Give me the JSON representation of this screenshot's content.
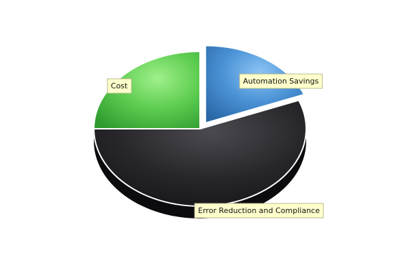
{
  "chart_data": {
    "type": "pie",
    "style": "3d",
    "slices": [
      {
        "label": "Automation Savings",
        "value": 19,
        "color": "#3f88d0",
        "exploded": true
      },
      {
        "label": "Error Reduction and Compliance",
        "value": 56,
        "color": "#2a2a2e",
        "exploded": false
      },
      {
        "label": "Cost",
        "value": 25,
        "color": "#4fc24f",
        "exploded": false
      }
    ],
    "legend": "none"
  }
}
